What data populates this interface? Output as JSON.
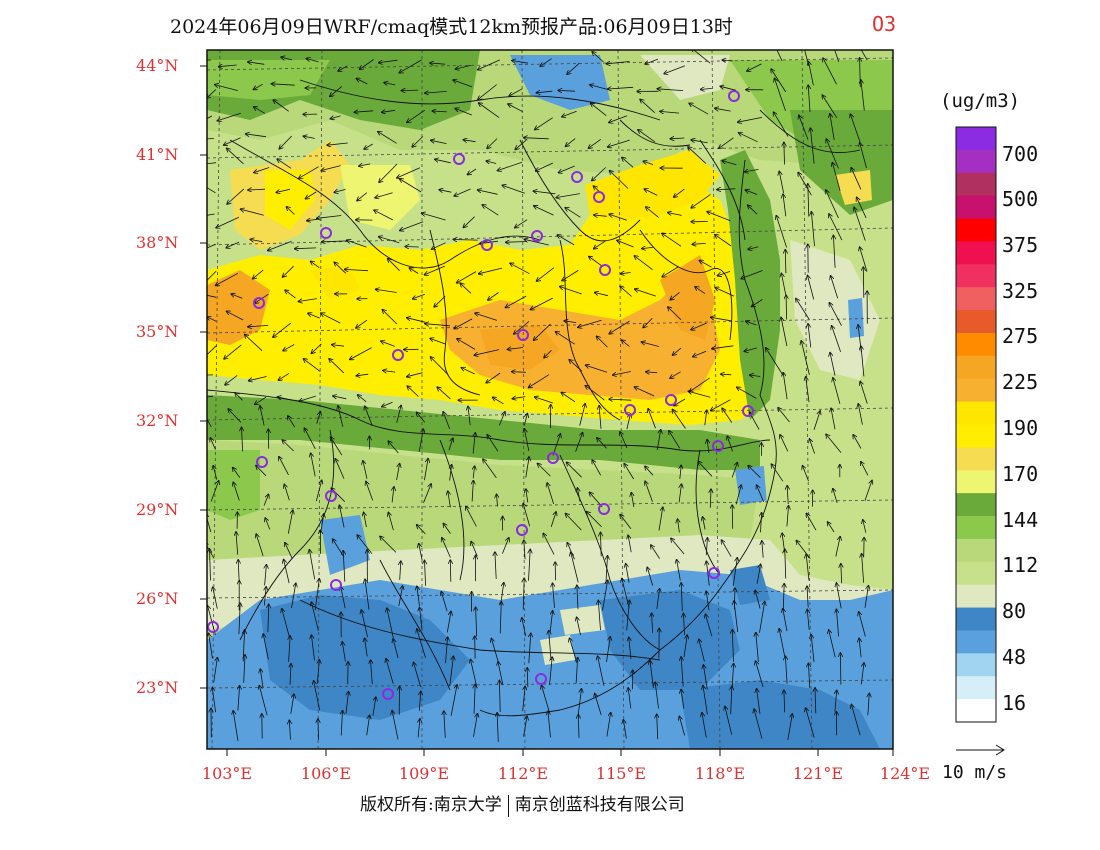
{
  "title": {
    "main": "2024年06月09日WRF/cmaq模式12km预报产品:06月09日13时",
    "species": "O3"
  },
  "axes": {
    "lat_labels": [
      "44°N",
      "41°N",
      "38°N",
      "35°N",
      "32°N",
      "29°N",
      "26°N",
      "23°N"
    ],
    "lon_labels": [
      "103°E",
      "106°E",
      "109°E",
      "112°E",
      "115°E",
      "118°E",
      "121°E",
      "124°E"
    ]
  },
  "colorbar": {
    "unit": "(ug/m3)",
    "labels": [
      "700",
      "500",
      "375",
      "325",
      "275",
      "225",
      "190",
      "170",
      "144",
      "112",
      "80",
      "48",
      "16"
    ],
    "colors": [
      "#8b2be2",
      "#a52fc2",
      "#b03060",
      "#c8106e",
      "#ff0000",
      "#f01050",
      "#f03060",
      "#f06060",
      "#e85a2a",
      "#ff8c00",
      "#f5a623",
      "#f8b030",
      "#ffe600",
      "#ffee00",
      "#f5dc50",
      "#eef570",
      "#6aaa3a",
      "#8cc84b",
      "#b8d87a",
      "#c7e18a",
      "#dfe8c0",
      "#3f86c6",
      "#5aa0dc",
      "#a0d4f0",
      "#d6eef8",
      "#ffffff"
    ]
  },
  "vector_legend": {
    "label": "10 m/s"
  },
  "footer": {
    "left": "版权所有:南京大学",
    "right": "南京创蓝科技有限公司"
  },
  "cities": [
    "c1",
    "c2",
    "c3",
    "c4",
    "c5",
    "c6",
    "c7",
    "c8",
    "c9",
    "c10",
    "c11",
    "c12",
    "c13",
    "c14",
    "c15",
    "c16",
    "c17",
    "c18",
    "c19",
    "c20",
    "c21",
    "c22",
    "c23",
    "c24",
    "c25"
  ]
}
